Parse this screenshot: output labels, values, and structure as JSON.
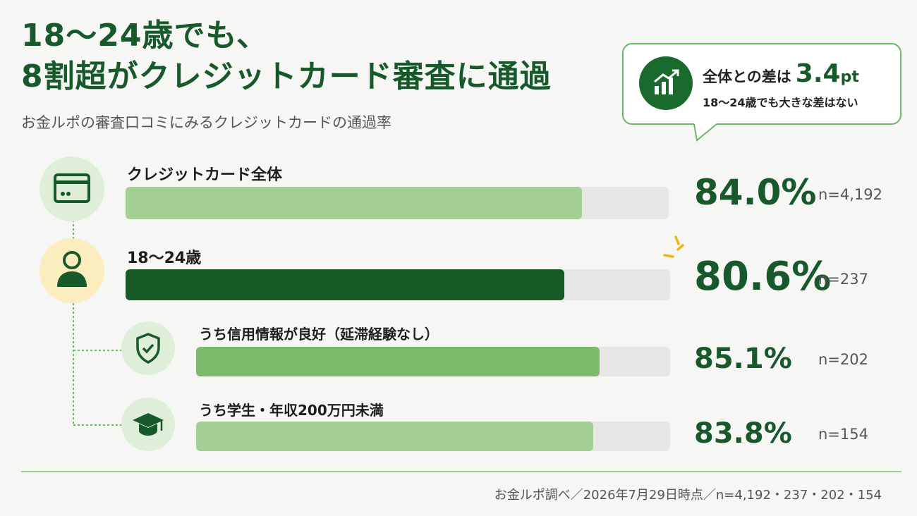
{
  "header": {
    "title_line1": "18〜24歳でも、",
    "title_line2": "8割超がクレジットカード審査に通過",
    "subtitle": "お金ルポの審査口コミにみるクレジットカードの通過率"
  },
  "callout": {
    "prefix": "全体との差は",
    "value": "3.4",
    "unit": "pt",
    "note": "18〜24歳でも大きな差はない",
    "icon": "growth-chart-icon"
  },
  "chart_data": {
    "type": "bar",
    "orientation": "horizontal",
    "xlim": [
      0,
      100
    ],
    "categories": [
      "クレジットカード全体",
      "18〜24歳",
      "うち信用情報が良好（延滞経験なし）",
      "うち学生・年収200万円未満"
    ],
    "values": [
      84.0,
      80.6,
      85.1,
      83.8
    ],
    "value_labels": [
      "84.0%",
      "80.6%",
      "85.1%",
      "83.8%"
    ],
    "sample_sizes": [
      "n=4,192",
      "n=237",
      "n=202",
      "n=154"
    ],
    "icons": [
      "credit-card-icon",
      "person-icon",
      "shield-check-icon",
      "graduation-cap-icon"
    ],
    "colors": {
      "overall": "#a4d096",
      "age_18_24": "#175a28",
      "good_credit": "#7dbb6c",
      "student": "#a4d096",
      "track": "#e6e6e4"
    }
  },
  "footer": {
    "source": "お金ルポ調べ／2026年7月29日時点／n=4,192・237・202・154"
  },
  "colors": {
    "accent": "#17592a",
    "accent_dark": "#1a6a2e",
    "highlight_circle": "#fbedbd",
    "icon_circle": "#dfeed9",
    "callout_border": "#6cb66c"
  }
}
